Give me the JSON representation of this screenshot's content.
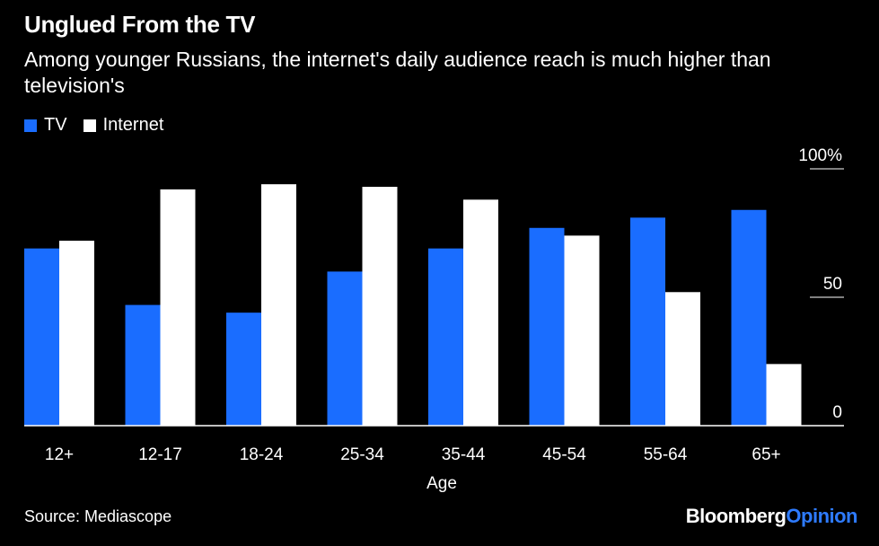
{
  "header": {
    "title": "Unglued From the TV",
    "subtitle": "Among younger Russians, the internet's daily audience reach is much higher than television's"
  },
  "legend": {
    "items": [
      {
        "label": "TV",
        "color": "#1a6dff"
      },
      {
        "label": "Internet",
        "color": "#ffffff"
      }
    ]
  },
  "footer": {
    "source": "Source: Mediascope",
    "brand_part1": "Bloomberg",
    "brand_part2": "Opinion"
  },
  "chart_data": {
    "type": "bar",
    "categories": [
      "12+",
      "12-17",
      "18-24",
      "25-34",
      "35-44",
      "45-54",
      "55-64",
      "65+"
    ],
    "series": [
      {
        "name": "TV",
        "color": "#1a6dff",
        "values": [
          69,
          47,
          44,
          60,
          69,
          77,
          81,
          84
        ]
      },
      {
        "name": "Internet",
        "color": "#ffffff",
        "values": [
          72,
          92,
          94,
          93,
          88,
          74,
          52,
          24
        ]
      }
    ],
    "xlabel": "Age",
    "ylabel": "",
    "ylim": [
      0,
      100
    ],
    "yticks": [
      {
        "value": 100,
        "label": "100%"
      },
      {
        "value": 50,
        "label": "50"
      },
      {
        "value": 0,
        "label": "0"
      }
    ],
    "grid": false,
    "legend_position": "top-left"
  }
}
